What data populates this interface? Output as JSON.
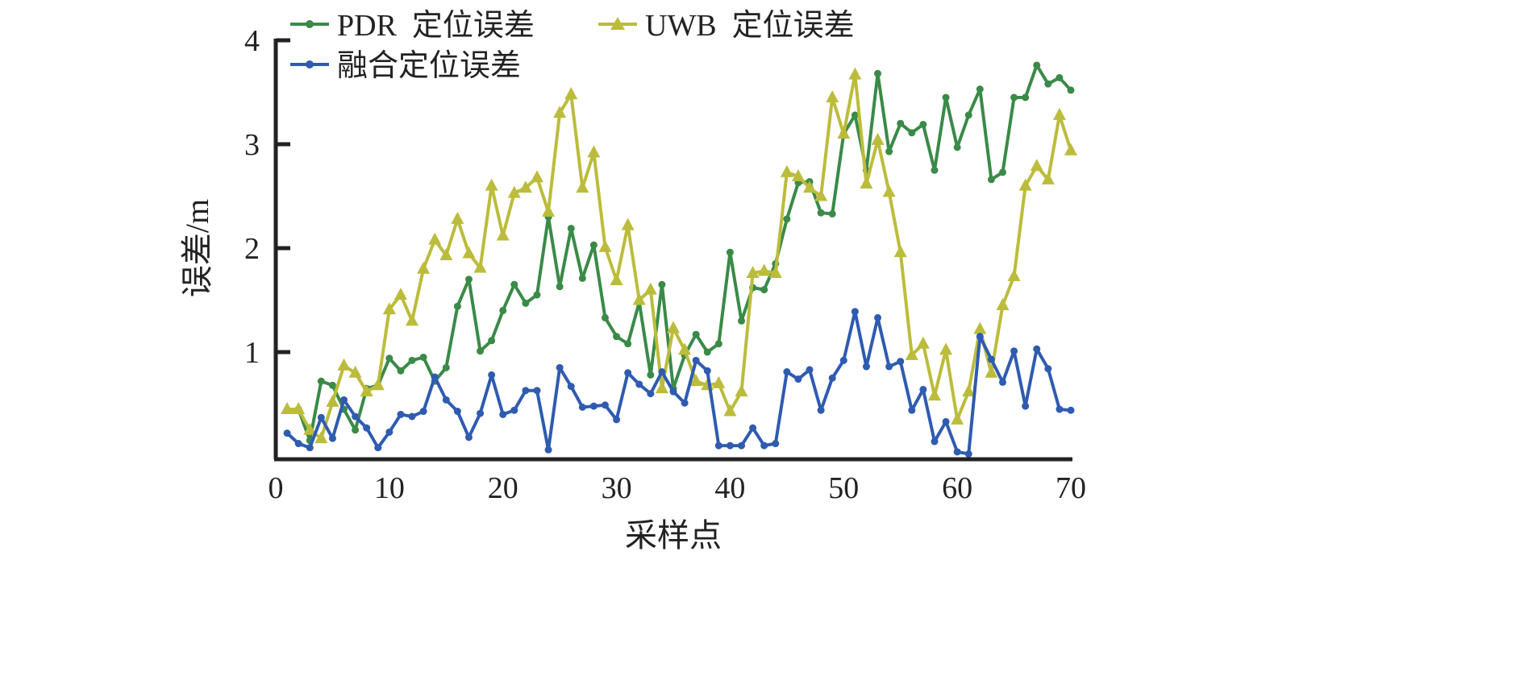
{
  "chart_data": {
    "type": "line",
    "title": "",
    "xlabel": "采样点",
    "ylabel": "误差/m",
    "xlim": [
      0,
      70
    ],
    "ylim": [
      0,
      4
    ],
    "xticks": [
      "0",
      "10",
      "20",
      "30",
      "40",
      "50",
      "60",
      "70"
    ],
    "yticks": [
      "1",
      "2",
      "3",
      "4"
    ],
    "grid": false,
    "legend_position": "top",
    "series": [
      {
        "name": "PDR  定位误差",
        "color": "#3a8a48",
        "marker": "circle",
        "values": [
          0.44,
          0.45,
          0.15,
          0.72,
          0.68,
          0.45,
          0.25,
          0.65,
          0.68,
          0.94,
          0.82,
          0.92,
          0.95,
          0.72,
          0.85,
          1.44,
          1.7,
          1.01,
          1.11,
          1.4,
          1.65,
          1.47,
          1.55,
          2.3,
          1.63,
          2.19,
          1.71,
          2.03,
          1.33,
          1.15,
          1.08,
          1.48,
          0.78,
          1.65,
          0.65,
          0.97,
          1.17,
          1.0,
          1.08,
          1.96,
          1.3,
          1.62,
          1.6,
          1.85,
          2.28,
          2.63,
          2.64,
          2.34,
          2.33,
          3.1,
          3.28,
          2.75,
          3.68,
          2.93,
          3.2,
          3.11,
          3.19,
          2.75,
          3.45,
          2.97,
          3.28,
          3.53,
          2.66,
          2.73,
          3.45,
          3.45,
          3.76,
          3.58,
          3.64,
          3.52
        ]
      },
      {
        "name": "UWB  定位误差",
        "color": "#bcbc3c",
        "marker": "triangle",
        "values": [
          0.45,
          0.45,
          0.25,
          0.17,
          0.52,
          0.87,
          0.8,
          0.62,
          0.68,
          1.41,
          1.55,
          1.3,
          1.8,
          2.08,
          1.93,
          2.28,
          1.95,
          1.81,
          2.6,
          2.12,
          2.53,
          2.58,
          2.68,
          2.35,
          3.3,
          3.48,
          2.58,
          2.92,
          2.01,
          1.69,
          2.22,
          1.5,
          1.6,
          0.65,
          1.23,
          1.02,
          0.72,
          0.68,
          0.7,
          0.43,
          0.62,
          1.76,
          1.78,
          1.76,
          2.73,
          2.69,
          2.58,
          2.5,
          3.45,
          3.1,
          3.67,
          2.62,
          3.04,
          2.54,
          1.96,
          0.97,
          1.08,
          0.58,
          1.02,
          0.35,
          0.62,
          1.22,
          0.8,
          1.45,
          1.73,
          2.6,
          2.79,
          2.66,
          3.28,
          2.94
        ]
      },
      {
        "name": "融合定位误差",
        "color": "#2f5bb0",
        "marker": "circle",
        "values": [
          0.22,
          0.12,
          0.08,
          0.37,
          0.17,
          0.54,
          0.38,
          0.27,
          0.08,
          0.23,
          0.4,
          0.38,
          0.43,
          0.76,
          0.54,
          0.43,
          0.18,
          0.41,
          0.78,
          0.4,
          0.44,
          0.63,
          0.63,
          0.06,
          0.85,
          0.67,
          0.47,
          0.48,
          0.49,
          0.35,
          0.8,
          0.69,
          0.6,
          0.81,
          0.62,
          0.51,
          0.92,
          0.82,
          0.1,
          0.1,
          0.1,
          0.27,
          0.1,
          0.12,
          0.81,
          0.74,
          0.83,
          0.44,
          0.75,
          0.92,
          1.39,
          0.86,
          1.33,
          0.86,
          0.91,
          0.44,
          0.64,
          0.14,
          0.33,
          0.04,
          0.02,
          1.15,
          0.93,
          0.71,
          1.01,
          0.48,
          1.03,
          0.84,
          0.45,
          0.44
        ]
      }
    ]
  }
}
